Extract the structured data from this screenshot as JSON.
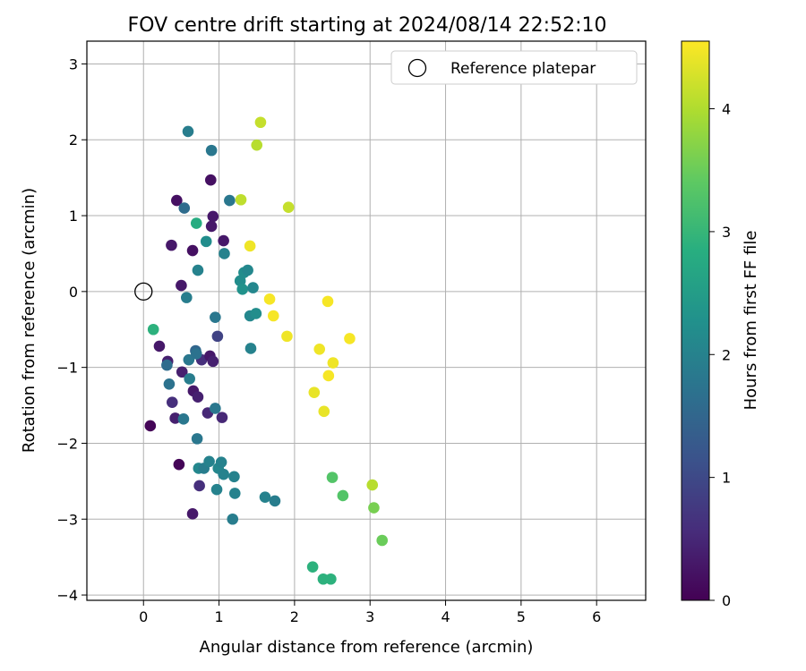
{
  "chart_data": {
    "type": "scatter",
    "title": "FOV centre drift starting at 2024/08/14 22:52:10",
    "xlabel": "Angular distance from reference (arcmin)",
    "ylabel": "Rotation from reference (arcmin)",
    "xlim": [
      -0.75,
      6.65
    ],
    "ylim": [
      -4.07,
      3.3
    ],
    "x_ticks": [
      0,
      1,
      2,
      3,
      4,
      5,
      6
    ],
    "y_ticks": [
      -4,
      -3,
      -2,
      -1,
      0,
      1,
      2,
      3
    ],
    "grid": true,
    "legend": {
      "position": "top-right",
      "entries": [
        "Reference platepar"
      ]
    },
    "reference_point": {
      "x": 0,
      "y": 0,
      "label": "Reference platepar"
    },
    "colorbar": {
      "label": "Hours from first FF file",
      "range": [
        0,
        4.55
      ],
      "ticks": [
        0,
        1,
        2,
        3,
        4
      ],
      "colormap": "viridis"
    },
    "points": [
      {
        "x": 0.09,
        "y": -1.77,
        "h": 0.05
      },
      {
        "x": 0.21,
        "y": -0.72,
        "h": 0.3
      },
      {
        "x": 0.32,
        "y": -0.92,
        "h": 0.4
      },
      {
        "x": 0.37,
        "y": 0.61,
        "h": 0.3
      },
      {
        "x": 0.38,
        "y": -1.46,
        "h": 0.6
      },
      {
        "x": 0.42,
        "y": -1.67,
        "h": 0.4
      },
      {
        "x": 0.44,
        "y": 1.2,
        "h": 0.2
      },
      {
        "x": 0.47,
        "y": -2.28,
        "h": 0.05
      },
      {
        "x": 0.5,
        "y": 0.08,
        "h": 0.3
      },
      {
        "x": 0.51,
        "y": -1.06,
        "h": 0.4
      },
      {
        "x": 0.65,
        "y": -2.93,
        "h": 0.3
      },
      {
        "x": 0.65,
        "y": 0.54,
        "h": 0.2
      },
      {
        "x": 0.66,
        "y": -1.31,
        "h": 0.3
      },
      {
        "x": 0.72,
        "y": -1.39,
        "h": 0.4
      },
      {
        "x": 0.74,
        "y": -2.56,
        "h": 0.6
      },
      {
        "x": 0.77,
        "y": -0.9,
        "h": 0.6
      },
      {
        "x": 0.85,
        "y": -1.6,
        "h": 0.5
      },
      {
        "x": 0.88,
        "y": -0.85,
        "h": 0.3
      },
      {
        "x": 0.89,
        "y": 1.47,
        "h": 0.2
      },
      {
        "x": 0.9,
        "y": 0.86,
        "h": 0.3
      },
      {
        "x": 0.92,
        "y": 0.99,
        "h": 0.3
      },
      {
        "x": 0.92,
        "y": -0.92,
        "h": 0.4
      },
      {
        "x": 0.98,
        "y": -0.59,
        "h": 0.9
      },
      {
        "x": 1.04,
        "y": -1.66,
        "h": 0.5
      },
      {
        "x": 1.06,
        "y": 0.67,
        "h": 0.3
      },
      {
        "x": 0.31,
        "y": -0.97,
        "h": 1.6
      },
      {
        "x": 0.34,
        "y": -1.22,
        "h": 1.7
      },
      {
        "x": 0.53,
        "y": -1.68,
        "h": 1.8
      },
      {
        "x": 0.54,
        "y": 1.1,
        "h": 1.6
      },
      {
        "x": 0.57,
        "y": -0.08,
        "h": 1.9
      },
      {
        "x": 0.59,
        "y": 2.11,
        "h": 1.9
      },
      {
        "x": 0.6,
        "y": -0.9,
        "h": 1.8
      },
      {
        "x": 0.61,
        "y": -1.15,
        "h": 1.9
      },
      {
        "x": 0.69,
        "y": -0.78,
        "h": 1.5
      },
      {
        "x": 0.7,
        "y": -0.82,
        "h": 1.7
      },
      {
        "x": 0.71,
        "y": -1.94,
        "h": 1.8
      },
      {
        "x": 0.72,
        "y": 0.28,
        "h": 2.0
      },
      {
        "x": 0.73,
        "y": -2.33,
        "h": 2.1
      },
      {
        "x": 0.8,
        "y": -2.33,
        "h": 1.9
      },
      {
        "x": 0.83,
        "y": 0.66,
        "h": 2.2
      },
      {
        "x": 0.87,
        "y": -2.24,
        "h": 2.0
      },
      {
        "x": 0.9,
        "y": 1.86,
        "h": 1.8
      },
      {
        "x": 0.95,
        "y": -0.34,
        "h": 1.8
      },
      {
        "x": 0.95,
        "y": -1.54,
        "h": 1.8
      },
      {
        "x": 0.97,
        "y": -2.61,
        "h": 2.0
      },
      {
        "x": 0.99,
        "y": -2.33,
        "h": 2.1
      },
      {
        "x": 1.03,
        "y": -2.25,
        "h": 2.0
      },
      {
        "x": 1.06,
        "y": -2.41,
        "h": 2.0
      },
      {
        "x": 1.07,
        "y": 0.5,
        "h": 2.0
      },
      {
        "x": 1.14,
        "y": 1.2,
        "h": 1.8
      },
      {
        "x": 1.18,
        "y": -3.0,
        "h": 1.9
      },
      {
        "x": 1.2,
        "y": -2.44,
        "h": 2.0
      },
      {
        "x": 1.21,
        "y": -2.66,
        "h": 2.0
      },
      {
        "x": 1.28,
        "y": 0.14,
        "h": 2.2
      },
      {
        "x": 1.31,
        "y": 0.03,
        "h": 2.3
      },
      {
        "x": 1.33,
        "y": 0.25,
        "h": 2.2
      },
      {
        "x": 1.38,
        "y": 0.28,
        "h": 2.1
      },
      {
        "x": 1.41,
        "y": -0.32,
        "h": 2.1
      },
      {
        "x": 1.42,
        "y": -0.75,
        "h": 2.0
      },
      {
        "x": 1.45,
        "y": 0.05,
        "h": 2.1
      },
      {
        "x": 1.49,
        "y": -0.29,
        "h": 2.2
      },
      {
        "x": 1.61,
        "y": -2.71,
        "h": 2.0
      },
      {
        "x": 1.74,
        "y": -2.76,
        "h": 1.9
      },
      {
        "x": 0.13,
        "y": -0.5,
        "h": 2.9
      },
      {
        "x": 0.7,
        "y": 0.9,
        "h": 2.8
      },
      {
        "x": 2.24,
        "y": -3.63,
        "h": 2.9
      },
      {
        "x": 2.38,
        "y": -3.79,
        "h": 2.9
      },
      {
        "x": 2.48,
        "y": -3.79,
        "h": 2.9
      },
      {
        "x": 2.5,
        "y": -2.45,
        "h": 3.3
      },
      {
        "x": 2.64,
        "y": -2.69,
        "h": 3.3
      },
      {
        "x": 3.05,
        "y": -2.85,
        "h": 3.6
      },
      {
        "x": 3.16,
        "y": -3.28,
        "h": 3.5
      },
      {
        "x": 1.29,
        "y": 1.21,
        "h": 4.1
      },
      {
        "x": 1.5,
        "y": 1.93,
        "h": 4.05
      },
      {
        "x": 1.55,
        "y": 2.23,
        "h": 4.15
      },
      {
        "x": 1.92,
        "y": 1.11,
        "h": 4.15
      },
      {
        "x": 3.03,
        "y": -2.55,
        "h": 4.05
      },
      {
        "x": 1.41,
        "y": 0.6,
        "h": 4.45
      },
      {
        "x": 1.67,
        "y": -0.1,
        "h": 4.5
      },
      {
        "x": 1.72,
        "y": -0.32,
        "h": 4.5
      },
      {
        "x": 1.9,
        "y": -0.59,
        "h": 4.45
      },
      {
        "x": 2.26,
        "y": -1.33,
        "h": 4.4
      },
      {
        "x": 2.33,
        "y": -0.76,
        "h": 4.45
      },
      {
        "x": 2.39,
        "y": -1.58,
        "h": 4.4
      },
      {
        "x": 2.44,
        "y": -0.13,
        "h": 4.5
      },
      {
        "x": 2.45,
        "y": -1.11,
        "h": 4.5
      },
      {
        "x": 2.51,
        "y": -0.94,
        "h": 4.45
      },
      {
        "x": 2.73,
        "y": -0.62,
        "h": 4.5
      }
    ]
  }
}
